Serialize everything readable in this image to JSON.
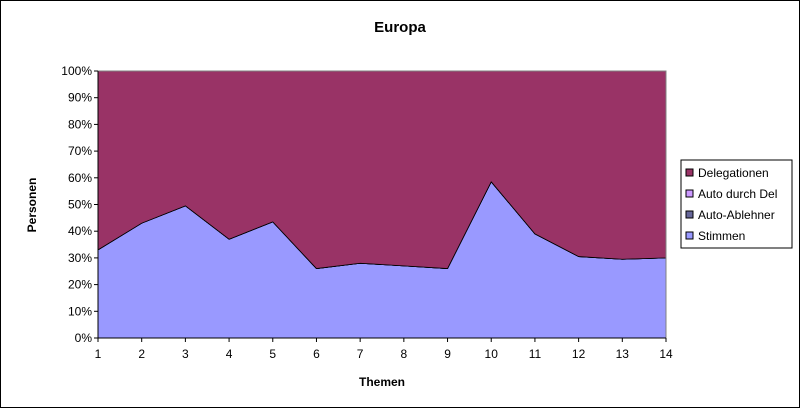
{
  "chart_data": {
    "type": "area",
    "stacked_percent": true,
    "title": "Europa",
    "xlabel": "Themen",
    "ylabel": "Personen",
    "x": [
      1,
      2,
      3,
      4,
      5,
      6,
      7,
      8,
      9,
      10,
      11,
      12,
      13,
      14
    ],
    "x_tick_labels": [
      "1",
      "2",
      "3",
      "4",
      "5",
      "6",
      "7",
      "8",
      "9",
      "10",
      "11",
      "12",
      "13",
      "14"
    ],
    "y_tick_labels": [
      "0%",
      "10%",
      "20%",
      "30%",
      "40%",
      "50%",
      "60%",
      "70%",
      "80%",
      "90%",
      "100%"
    ],
    "ylim": [
      0,
      100
    ],
    "grid": false,
    "legend_position": "right",
    "series": [
      {
        "name": "Stimmen",
        "color": "#9999ff",
        "values": [
          33,
          43,
          49.5,
          37,
          43.5,
          26,
          28,
          27,
          26,
          58.5,
          39,
          30.5,
          29.5,
          30
        ]
      },
      {
        "name": "Auto-Ablehner",
        "color": "#666699",
        "values": [
          0,
          0,
          0,
          0,
          0,
          0,
          0,
          0,
          0,
          0,
          0,
          0,
          0,
          0
        ]
      },
      {
        "name": "Auto durch Del",
        "color": "#cc99ff",
        "values": [
          0,
          0,
          0,
          0,
          0,
          0,
          0,
          0,
          0,
          0,
          0,
          0,
          0,
          0
        ]
      },
      {
        "name": "Delegationen",
        "color": "#993366",
        "values": [
          67,
          57,
          50.5,
          63,
          56.5,
          74,
          72,
          73,
          74,
          41.5,
          61,
          69.5,
          70.5,
          70
        ]
      }
    ],
    "legend_order": [
      "Delegationen",
      "Auto durch Del",
      "Auto-Ablehner",
      "Stimmen"
    ]
  }
}
